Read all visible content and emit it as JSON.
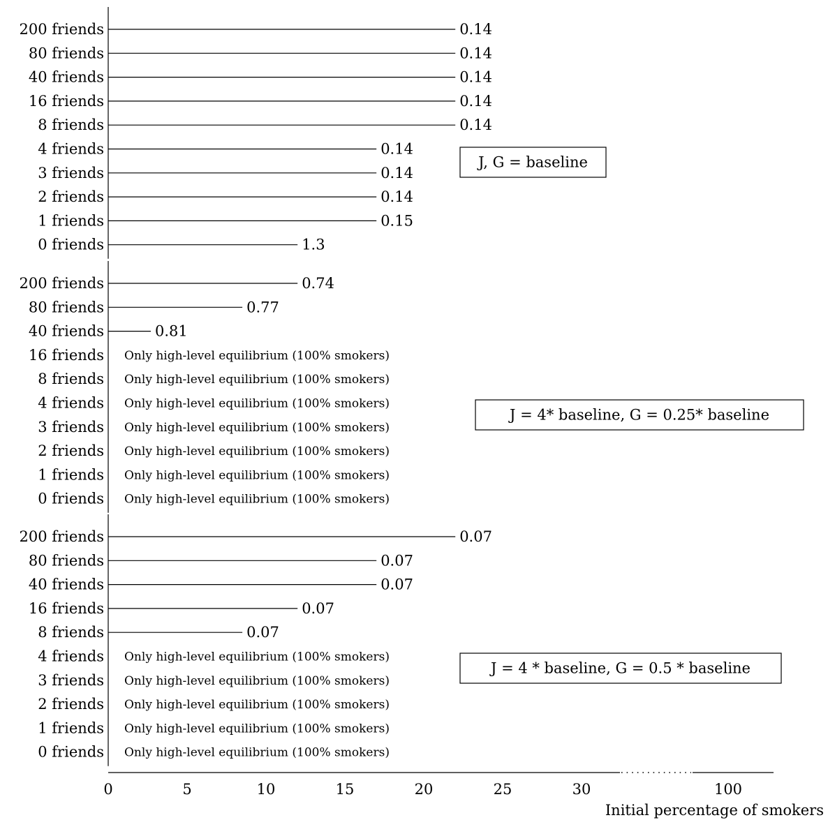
{
  "chart_data": {
    "type": "bar",
    "orientation": "horizontal",
    "xlabel": "Initial percentage of smokers",
    "x_ticks": [
      "0",
      "5",
      "10",
      "15",
      "20",
      "25",
      "30",
      "100"
    ],
    "x_axis_break": "between 30 and 100",
    "no_line_text": "Only high-level equilibrium (100% smokers)",
    "panels": [
      {
        "label": "J, G = baseline",
        "categories": [
          "200 friends",
          "80 friends",
          "40 friends",
          "16 friends",
          "8 friends",
          "4 friends",
          "3 friends",
          "2 friends",
          "1 friends",
          "0 friends"
        ],
        "values": [
          22,
          22,
          22,
          22,
          22,
          17,
          17,
          17,
          17,
          12
        ],
        "value_labels": [
          "0.14",
          "0.14",
          "0.14",
          "0.14",
          "0.14",
          "0.14",
          "0.14",
          "0.14",
          "0.15",
          "1.3"
        ]
      },
      {
        "label": "J = 4* baseline, G = 0.25* baseline",
        "categories": [
          "200 friends",
          "80 friends",
          "40 friends",
          "16 friends",
          "8 friends",
          "4 friends",
          "3 friends",
          "2 friends",
          "1 friends",
          "0 friends"
        ],
        "values": [
          12,
          8.5,
          2.7,
          null,
          null,
          null,
          null,
          null,
          null,
          null
        ],
        "value_labels": [
          "0.74",
          "0.77",
          "0.81",
          null,
          null,
          null,
          null,
          null,
          null,
          null
        ]
      },
      {
        "label": "J = 4 * baseline, G = 0.5 * baseline",
        "categories": [
          "200 friends",
          "80 friends",
          "40 friends",
          "16 friends",
          "8 friends",
          "4 friends",
          "3 friends",
          "2 friends",
          "1 friends",
          "0 friends"
        ],
        "values": [
          22,
          17,
          17,
          12,
          8.5,
          null,
          null,
          null,
          null,
          null
        ],
        "value_labels": [
          "0.07",
          "0.07",
          "0.07",
          "0.07",
          "0.07",
          null,
          null,
          null,
          null,
          null
        ]
      }
    ]
  }
}
